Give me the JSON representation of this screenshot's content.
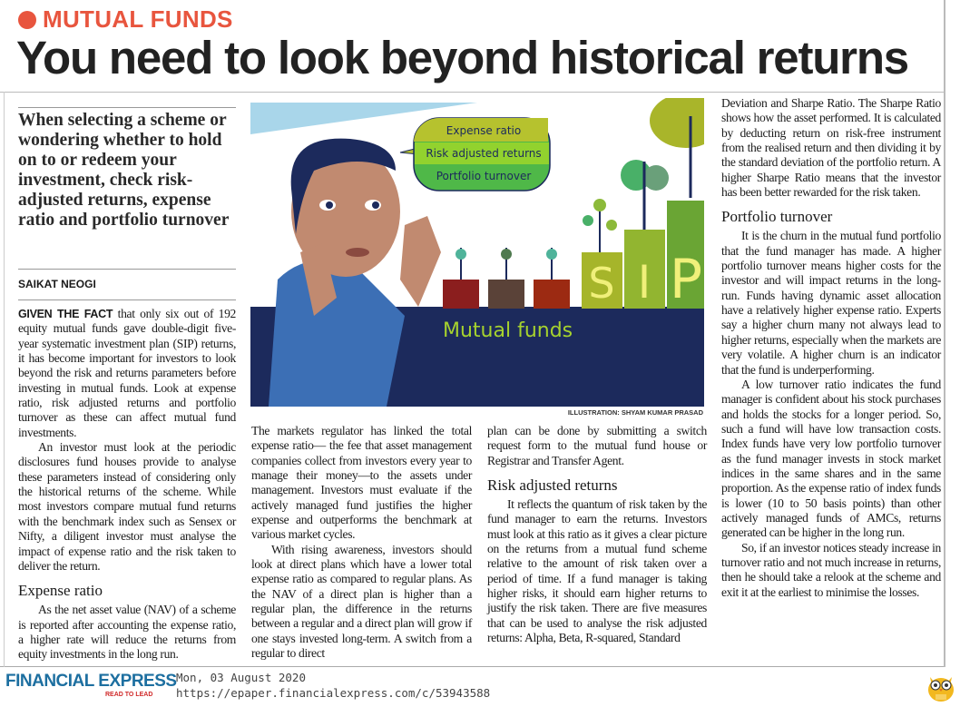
{
  "header": {
    "kicker": "MUTUAL FUNDS",
    "headline": "You need to look beyond historical returns",
    "kicker_color": "#e8553e"
  },
  "deck": "When selecting a scheme or wondering whether to hold on to or redeem your investment, check risk-adjusted returns, expense ratio and portfolio turnover",
  "byline": "SAIKAT NEOGI",
  "illustration": {
    "bubble_items": [
      "Expense ratio",
      "Risk adjusted returns",
      "Portfolio turnover"
    ],
    "label": "Mutual funds",
    "sip_letters": [
      "S",
      "I",
      "P"
    ],
    "credit": "ILLUSTRATION: SHYAM KUMAR PRASAD"
  },
  "body": {
    "lead_in": "GIVEN THE FACT",
    "p1": " that only six out of 192 equity mutual funds gave double-digit five-year systematic investment plan (SIP) returns, it has become important for investors to look beyond the risk and returns parameters before investing in mutual funds. Look at expense ratio, risk adjusted returns and portfolio turnover as these can affect mutual fund investments.",
    "p2": "An investor must look at the periodic disclosures fund houses provide to analyse these parameters instead of considering only the historical returns of the scheme. While most investors compare mutual fund returns with the benchmark index such as Sensex or Nifty, a diligent investor must analyse the impact of expense ratio and the risk taken to deliver the return.",
    "h_expense": "Expense ratio",
    "p3": "As the net asset value (NAV) of a scheme is reported after accounting the expense ratio, a higher rate will reduce the returns from equity investments in the long run.",
    "p4": "The markets regulator has linked the total expense ratio— the fee that asset management companies collect from investors every year to manage their money—to the assets under management. Investors must evaluate if the actively managed fund justifies the higher expense and outperforms the benchmark at various market cycles.",
    "p5": "With rising awareness, investors should look at direct plans which have a lower total expense ratio as compared to regular plans. As the NAV of a direct plan is higher than a regular plan, the difference in the returns between a regular and a direct plan will grow if one stays invested long-term. A switch from a regular to direct",
    "p6": "plan can be done by submitting a switch request form to the mutual fund house or Registrar and Transfer Agent.",
    "h_risk": "Risk adjusted returns",
    "p7": "It reflects the quantum of risk taken by the fund manager to earn the returns. Investors must look at this ratio as it gives a clear picture on the returns from a mutual fund scheme relative to the amount of risk taken over a period of time. If a fund manager is taking higher risks, it should earn higher returns to justify the risk taken. There are five measures that can be used to analyse the risk adjusted returns: Alpha, Beta, R-squared, Standard",
    "p8": "Deviation and Sharpe Ratio. The Sharpe Ratio shows how the asset performed. It is calculated by deducting return on risk-free instrument from the realised return and then dividing it by the standard deviation of the portfolio return. A higher Sharpe Ratio means that the investor has been better rewarded for the risk taken.",
    "h_turnover": "Portfolio turnover",
    "p9": "It is the churn in the mutual fund portfolio that the fund manager has made. A higher portfolio turnover means higher costs for the investor and will impact returns in the long-run. Funds having dynamic asset allocation have a relatively higher expense ratio. Experts say a higher churn many not always lead to higher returns, especially when the markets are very volatile. A higher churn is an indicator that the fund is underperforming.",
    "p10": "A low turnover ratio indicates the fund manager is confident about his stock purchases and holds the stocks for a longer period. So, such a fund will have low transaction costs. Index funds have very low portfolio turnover as the fund manager invests in stock market indices in the same shares and in the same proportion. As the expense ratio of index funds is lower (10 to 50 basis points) than other actively managed funds of AMCs, returns generated can be higher in the long run.",
    "p11": "So, if an investor notices steady increase in turnover ratio and not much increase in returns, then he should take a relook at the scheme and exit it at the earliest to minimise the losses."
  },
  "footer": {
    "logo": "FINANCIAL EXPRESS",
    "tagline": "READ TO LEAD",
    "date": "Mon, 03 August 2020",
    "url": "https://epaper.financialexpress.com/c/53943588",
    "logo_color": "#1d6fa0",
    "mascot_icon": "owl-icon"
  }
}
